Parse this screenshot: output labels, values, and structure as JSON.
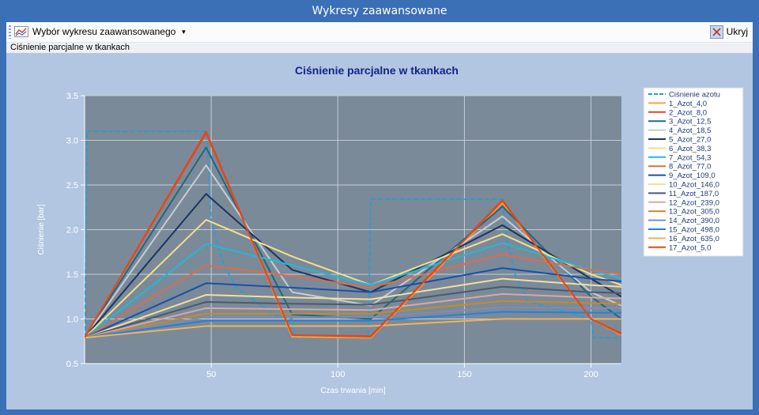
{
  "window": {
    "title": "Wykresy zaawansowane"
  },
  "toolbar": {
    "chart_select_label": "Wybór wykresu zaawansowanego",
    "hide_label": "Ukryj"
  },
  "subheader": {
    "label": "Ciśnienie parcjalne w tkankach"
  },
  "colors": {
    "plot_bg": "#7a8a99",
    "panel_bg": "#b2c6e2",
    "title": "#14248a"
  },
  "chart_data": {
    "type": "line",
    "title": "Ciśnienie parcjalne w tkankach",
    "xlabel": "Czas trwania [min]",
    "ylabel": "Ciśnienie [bar]",
    "xlim": [
      0,
      212
    ],
    "ylim": [
      0.5,
      3.5
    ],
    "x_ticks": [
      50,
      100,
      150,
      200
    ],
    "y_ticks": [
      0.5,
      1.0,
      1.5,
      2.0,
      2.5,
      3.0,
      3.5
    ],
    "x_tick_labels": [
      "50",
      "100",
      "150",
      "200"
    ],
    "y_tick_labels": [
      "0.5",
      "1.0",
      "1.5",
      "2.0",
      "2.5",
      "3.0",
      "3.5"
    ],
    "grid": true,
    "legend": "right",
    "series": [
      {
        "name": "Ciśnienie azotu",
        "color": "#1f9fd8",
        "dash": true,
        "x": [
          0,
          1,
          48,
          49,
          50,
          55,
          60,
          65,
          75,
          82,
          83,
          112,
          113,
          115,
          165,
          166,
          170,
          175,
          200,
          201,
          212
        ],
        "y": [
          0.79,
          3.1,
          3.1,
          2.7,
          2.1,
          1.6,
          1.35,
          1.25,
          1.05,
          1.0,
          0.79,
          0.79,
          2.34,
          2.34,
          2.34,
          2.0,
          1.5,
          1.2,
          1.0,
          0.79,
          0.79
        ]
      },
      {
        "name": "1_Azot_4,0",
        "color": "#f5a53a",
        "x": [
          0,
          48,
          82,
          113,
          165,
          200,
          212
        ],
        "y": [
          0.79,
          3.1,
          0.8,
          0.79,
          2.3,
          1.0,
          0.82
        ]
      },
      {
        "name": "2_Azot_8,0",
        "color": "#d8492d",
        "x": [
          0,
          48,
          82,
          113,
          165,
          200,
          212
        ],
        "y": [
          0.79,
          3.1,
          0.82,
          0.81,
          2.33,
          1.0,
          0.84
        ]
      },
      {
        "name": "3_Azot_12,5",
        "color": "#1d6a82",
        "x": [
          0,
          48,
          82,
          113,
          165,
          200,
          212
        ],
        "y": [
          0.79,
          2.92,
          1.05,
          1.0,
          2.26,
          1.25,
          1.0
        ]
      },
      {
        "name": "4_Azot_18,5",
        "color": "#c6ccd8",
        "x": [
          0,
          48,
          82,
          113,
          165,
          200,
          212
        ],
        "y": [
          0.79,
          2.72,
          1.3,
          1.15,
          2.15,
          1.3,
          1.15
        ]
      },
      {
        "name": "5_Azot_27,0",
        "color": "#1c3560",
        "x": [
          0,
          48,
          82,
          113,
          165,
          200,
          212
        ],
        "y": [
          0.79,
          2.4,
          1.55,
          1.3,
          2.05,
          1.45,
          1.25
        ]
      },
      {
        "name": "6_Azot_38,3",
        "color": "#f4e08a",
        "x": [
          0,
          48,
          82,
          113,
          165,
          200,
          212
        ],
        "y": [
          0.79,
          2.11,
          1.7,
          1.38,
          1.95,
          1.5,
          1.38
        ]
      },
      {
        "name": "7_Azot_54,3",
        "color": "#22b8d8",
        "x": [
          0,
          48,
          82,
          113,
          165,
          200,
          212
        ],
        "y": [
          0.79,
          1.84,
          1.6,
          1.38,
          1.85,
          1.55,
          1.45
        ]
      },
      {
        "name": "8_Azot_77,0",
        "color": "#d86d50",
        "x": [
          0,
          48,
          82,
          113,
          165,
          200,
          212
        ],
        "y": [
          0.79,
          1.6,
          1.48,
          1.35,
          1.72,
          1.55,
          1.5
        ]
      },
      {
        "name": "9_Azot_109,0",
        "color": "#1a4fa8",
        "x": [
          0,
          48,
          82,
          113,
          165,
          200,
          212
        ],
        "y": [
          0.79,
          1.4,
          1.35,
          1.3,
          1.57,
          1.45,
          1.42
        ]
      },
      {
        "name": "10_Azot_146,0",
        "color": "#f2dfa0",
        "x": [
          0,
          48,
          82,
          113,
          165,
          200,
          212
        ],
        "y": [
          0.79,
          1.27,
          1.24,
          1.22,
          1.45,
          1.38,
          1.36
        ]
      },
      {
        "name": "11_Azot_187,0",
        "color": "#4a5a6e",
        "x": [
          0,
          48,
          82,
          113,
          165,
          200,
          212
        ],
        "y": [
          0.79,
          1.19,
          1.17,
          1.16,
          1.36,
          1.3,
          1.29
        ]
      },
      {
        "name": "12_Azot_239,0",
        "color": "#d9a8a0",
        "x": [
          0,
          48,
          82,
          113,
          165,
          200,
          212
        ],
        "y": [
          0.79,
          1.12,
          1.11,
          1.1,
          1.28,
          1.24,
          1.23
        ]
      },
      {
        "name": "13_Azot_305,0",
        "color": "#c58a2a",
        "x": [
          0,
          48,
          82,
          113,
          165,
          200,
          212
        ],
        "y": [
          0.79,
          1.06,
          1.06,
          1.06,
          1.2,
          1.18,
          1.17
        ]
      },
      {
        "name": "14_Azot_390,0",
        "color": "#7d8db5",
        "x": [
          0,
          48,
          82,
          113,
          165,
          200,
          212
        ],
        "y": [
          0.79,
          1.02,
          1.02,
          1.02,
          1.13,
          1.12,
          1.12
        ]
      },
      {
        "name": "15_Azot_498,0",
        "color": "#2a7fd8",
        "x": [
          0,
          48,
          82,
          113,
          165,
          200,
          212
        ],
        "y": [
          0.79,
          0.98,
          0.98,
          0.98,
          1.08,
          1.07,
          1.07
        ]
      },
      {
        "name": "16_Azot_635,0",
        "color": "#f0b25a",
        "x": [
          0,
          48,
          82,
          113,
          165,
          200,
          212
        ],
        "y": [
          0.79,
          0.92,
          0.92,
          0.92,
          1.0,
          1.0,
          1.0
        ]
      },
      {
        "name": "17_Azot_5,0",
        "color": "#e04a1a",
        "x": [
          0,
          48,
          82,
          113,
          165,
          200,
          212
        ],
        "y": [
          0.79,
          3.08,
          0.82,
          0.8,
          2.32,
          1.0,
          0.83
        ]
      }
    ]
  }
}
